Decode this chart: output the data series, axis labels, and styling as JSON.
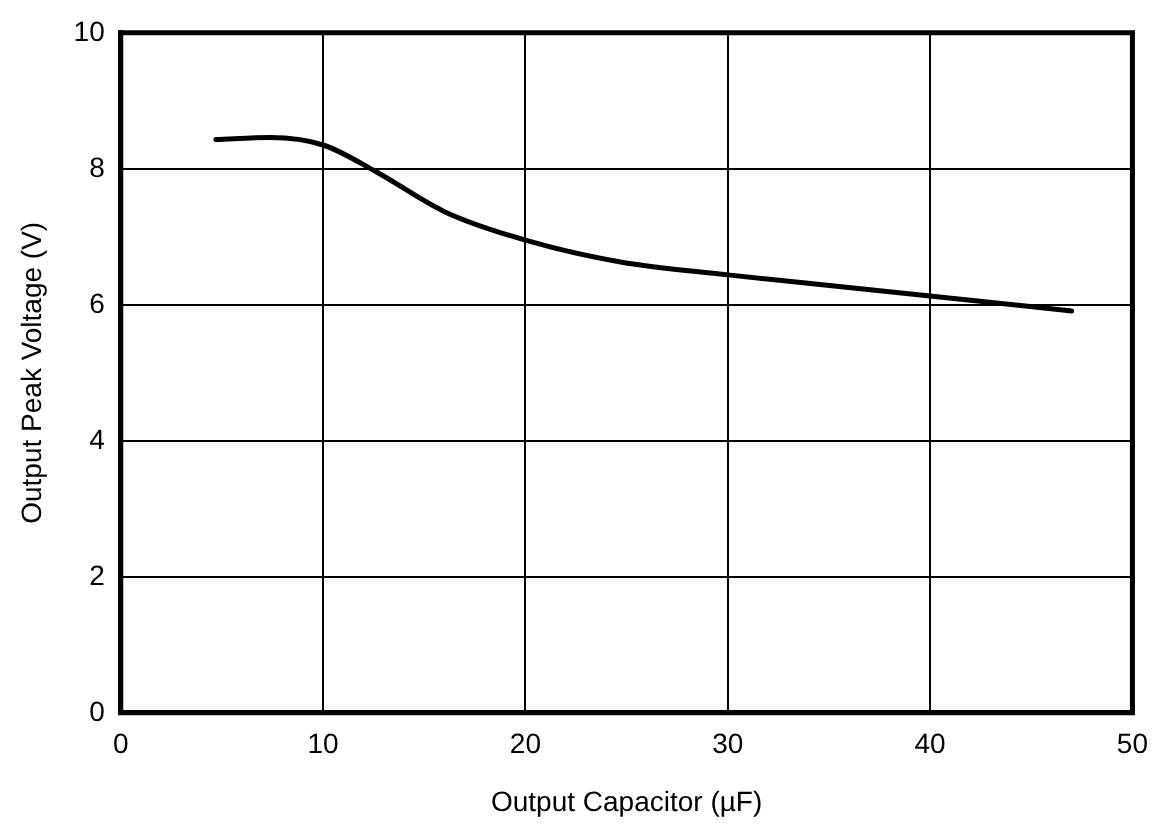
{
  "chart_data": {
    "type": "line",
    "xlabel": "Output Capacitor (µF)",
    "ylabel": "Output Peak Voltage (V)",
    "x": [
      4.7,
      7.4,
      10,
      12.6,
      16,
      20,
      24.7,
      30,
      35.5,
      40,
      47
    ],
    "series": [
      {
        "color": "#000000",
        "values": [
          8.43,
          8.46,
          8.35,
          7.96,
          7.37,
          6.95,
          6.63,
          6.44,
          6.27,
          6.13,
          5.91
        ]
      }
    ],
    "xlim": [
      0,
      50
    ],
    "xticks": [
      0,
      10,
      20,
      30,
      40,
      50
    ],
    "ylim": [
      0,
      10
    ],
    "yticks": [
      0,
      2,
      4,
      6,
      8,
      10
    ],
    "grid": true,
    "legend": false,
    "marker": "none",
    "line_style": "solid"
  }
}
